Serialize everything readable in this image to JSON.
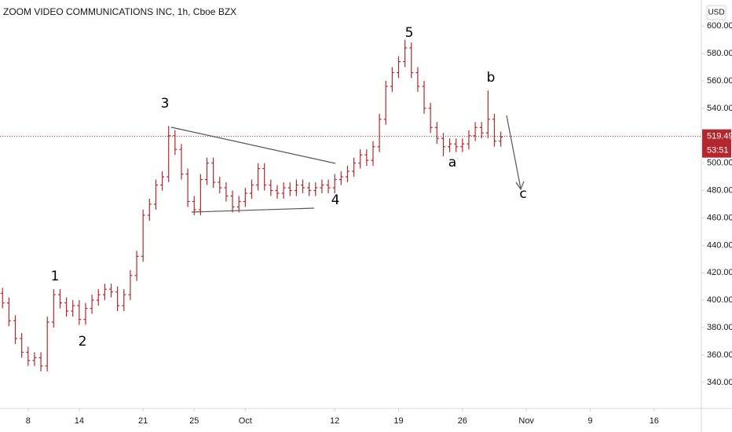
{
  "chart_data": {
    "type": "ohlc",
    "title": "ZOOM VIDEO COMMUNICATIONS INC, 1h, Cboe BZX",
    "currency": "USD",
    "color": "#b2282e",
    "last_price": 519.49,
    "last_price_label": "519.49",
    "countdown": "53:51",
    "grid": false,
    "xlim": [
      -2.2,
      52.7
    ],
    "xticks": [
      {
        "value": 0,
        "label": "8"
      },
      {
        "value": 4,
        "label": "14"
      },
      {
        "value": 9,
        "label": "21"
      },
      {
        "value": 13,
        "label": "25"
      },
      {
        "value": 17,
        "label": "Oct"
      },
      {
        "value": 24,
        "label": "12"
      },
      {
        "value": 29,
        "label": "19"
      },
      {
        "value": 34,
        "label": "26"
      },
      {
        "value": 39,
        "label": "Nov"
      },
      {
        "value": 44,
        "label": "9"
      },
      {
        "value": 49,
        "label": "16"
      }
    ],
    "ylim": [
      321,
      619
    ],
    "yticks": [
      {
        "value": 340,
        "label": "340.00"
      },
      {
        "value": 360,
        "label": "360.00"
      },
      {
        "value": 380,
        "label": "380.00"
      },
      {
        "value": 400,
        "label": "400.00"
      },
      {
        "value": 420,
        "label": "420.00"
      },
      {
        "value": 440,
        "label": "440.00"
      },
      {
        "value": 460,
        "label": "460.00"
      },
      {
        "value": 480,
        "label": "480.00"
      },
      {
        "value": 500,
        "label": "500.00"
      },
      {
        "value": 540,
        "label": "540.00"
      },
      {
        "value": 560,
        "label": "560.00"
      },
      {
        "value": 580,
        "label": "580.00"
      },
      {
        "value": 600,
        "label": "600.00"
      }
    ],
    "annotations": [
      "1",
      "2",
      "3",
      "4",
      "5",
      "a",
      "b",
      "c"
    ],
    "x": [
      -2,
      -1.5,
      -1,
      -0.5,
      0,
      0.5,
      1,
      1.5,
      2,
      2.5,
      3,
      3.5,
      4,
      4.5,
      5,
      5.5,
      6,
      6.5,
      7,
      7.5,
      8,
      8.5,
      9,
      9.5,
      10,
      10.5,
      11,
      11.5,
      12,
      12.5,
      13,
      13.5,
      14,
      14.5,
      15,
      15.5,
      16,
      16.5,
      17,
      17.5,
      18,
      18.5,
      19,
      19.5,
      20,
      20.5,
      21,
      21.5,
      22,
      22.5,
      23,
      23.5,
      24,
      24.5,
      25,
      25.5,
      26,
      26.5,
      27,
      27.5,
      28,
      28.5,
      29,
      29.5,
      30,
      30.5,
      31,
      31.5,
      32,
      32.5,
      33,
      33.5,
      34,
      34.5,
      35,
      35.5,
      36,
      36.5,
      37
    ],
    "open": [
      405,
      398,
      385,
      372,
      362,
      356,
      358,
      352,
      384,
      404,
      398,
      392,
      396,
      386,
      394,
      400,
      404,
      408,
      406,
      396,
      404,
      418,
      432,
      462,
      470,
      484,
      490,
      520,
      510,
      492,
      472,
      466,
      488,
      500,
      486,
      482,
      476,
      468,
      472,
      478,
      484,
      496,
      484,
      480,
      478,
      482,
      480,
      484,
      482,
      480,
      482,
      484,
      482,
      488,
      490,
      494,
      500,
      506,
      502,
      512,
      532,
      556,
      566,
      574,
      584,
      566,
      556,
      540,
      526,
      518,
      512,
      514,
      512,
      514,
      520,
      526,
      522,
      532,
      516
    ],
    "high": [
      409,
      402,
      389,
      376,
      366,
      362,
      362,
      388,
      408,
      408,
      402,
      400,
      400,
      398,
      404,
      408,
      412,
      412,
      410,
      408,
      422,
      436,
      466,
      474,
      488,
      494,
      527,
      524,
      514,
      496,
      476,
      492,
      504,
      504,
      490,
      486,
      480,
      476,
      482,
      488,
      500,
      500,
      488,
      484,
      486,
      486,
      488,
      488,
      486,
      486,
      488,
      488,
      492,
      494,
      498,
      504,
      510,
      510,
      516,
      536,
      560,
      570,
      578,
      590,
      588,
      570,
      560,
      544,
      530,
      522,
      518,
      518,
      518,
      524,
      530,
      530,
      553,
      536,
      523
    ],
    "low": [
      394,
      381,
      368,
      358,
      352,
      352,
      348,
      348,
      380,
      394,
      388,
      388,
      382,
      382,
      390,
      396,
      400,
      402,
      392,
      392,
      400,
      414,
      428,
      458,
      466,
      480,
      486,
      506,
      488,
      468,
      462,
      462,
      484,
      482,
      478,
      472,
      464,
      464,
      468,
      474,
      480,
      480,
      476,
      474,
      474,
      476,
      476,
      478,
      476,
      476,
      478,
      478,
      478,
      484,
      486,
      490,
      496,
      498,
      498,
      508,
      528,
      552,
      562,
      570,
      562,
      552,
      536,
      522,
      514,
      505,
      508,
      508,
      508,
      510,
      516,
      518,
      518,
      512,
      512
    ],
    "close": [
      398,
      385,
      372,
      362,
      356,
      358,
      352,
      384,
      404,
      398,
      392,
      396,
      386,
      394,
      400,
      404,
      408,
      406,
      396,
      404,
      418,
      432,
      462,
      470,
      484,
      490,
      520,
      510,
      492,
      472,
      466,
      488,
      500,
      486,
      482,
      476,
      468,
      472,
      478,
      484,
      496,
      484,
      480,
      478,
      482,
      480,
      484,
      482,
      480,
      482,
      484,
      482,
      488,
      490,
      494,
      500,
      506,
      502,
      512,
      532,
      556,
      566,
      574,
      584,
      566,
      556,
      540,
      526,
      518,
      512,
      514,
      512,
      514,
      520,
      526,
      522,
      532,
      516,
      519
    ]
  }
}
